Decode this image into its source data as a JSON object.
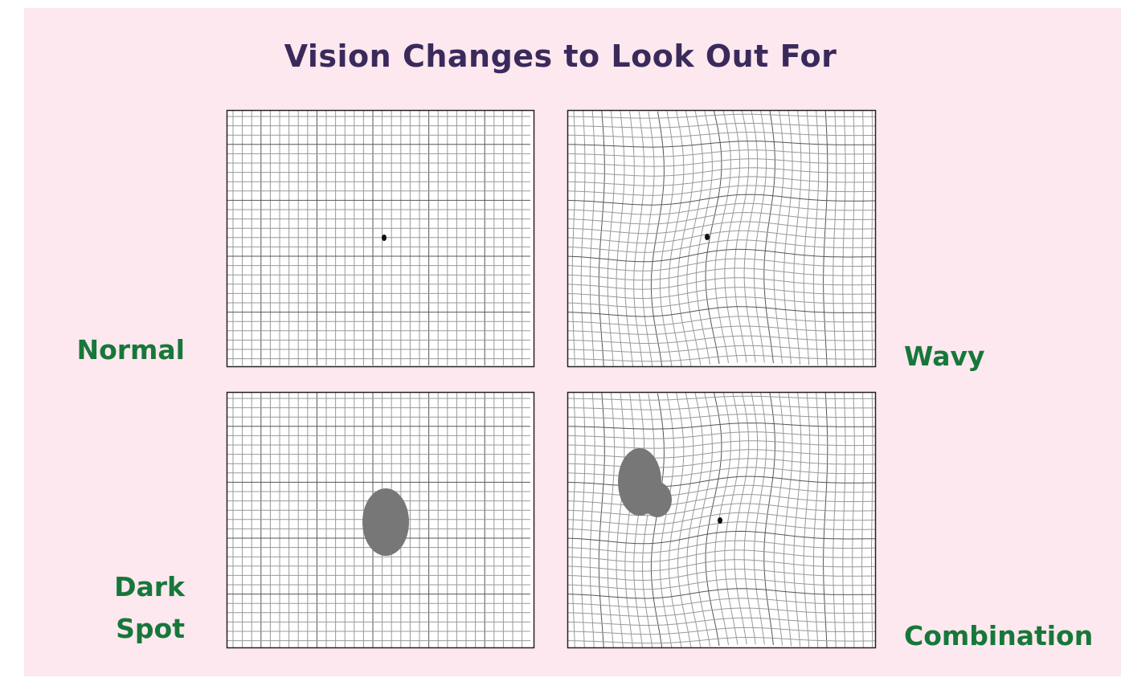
{
  "title": "Vision Changes to Look Out For",
  "panels": [
    {
      "label": "Normal"
    },
    {
      "label": "Wavy"
    },
    {
      "label": "Dark Spot"
    },
    {
      "label": "Combination"
    }
  ]
}
